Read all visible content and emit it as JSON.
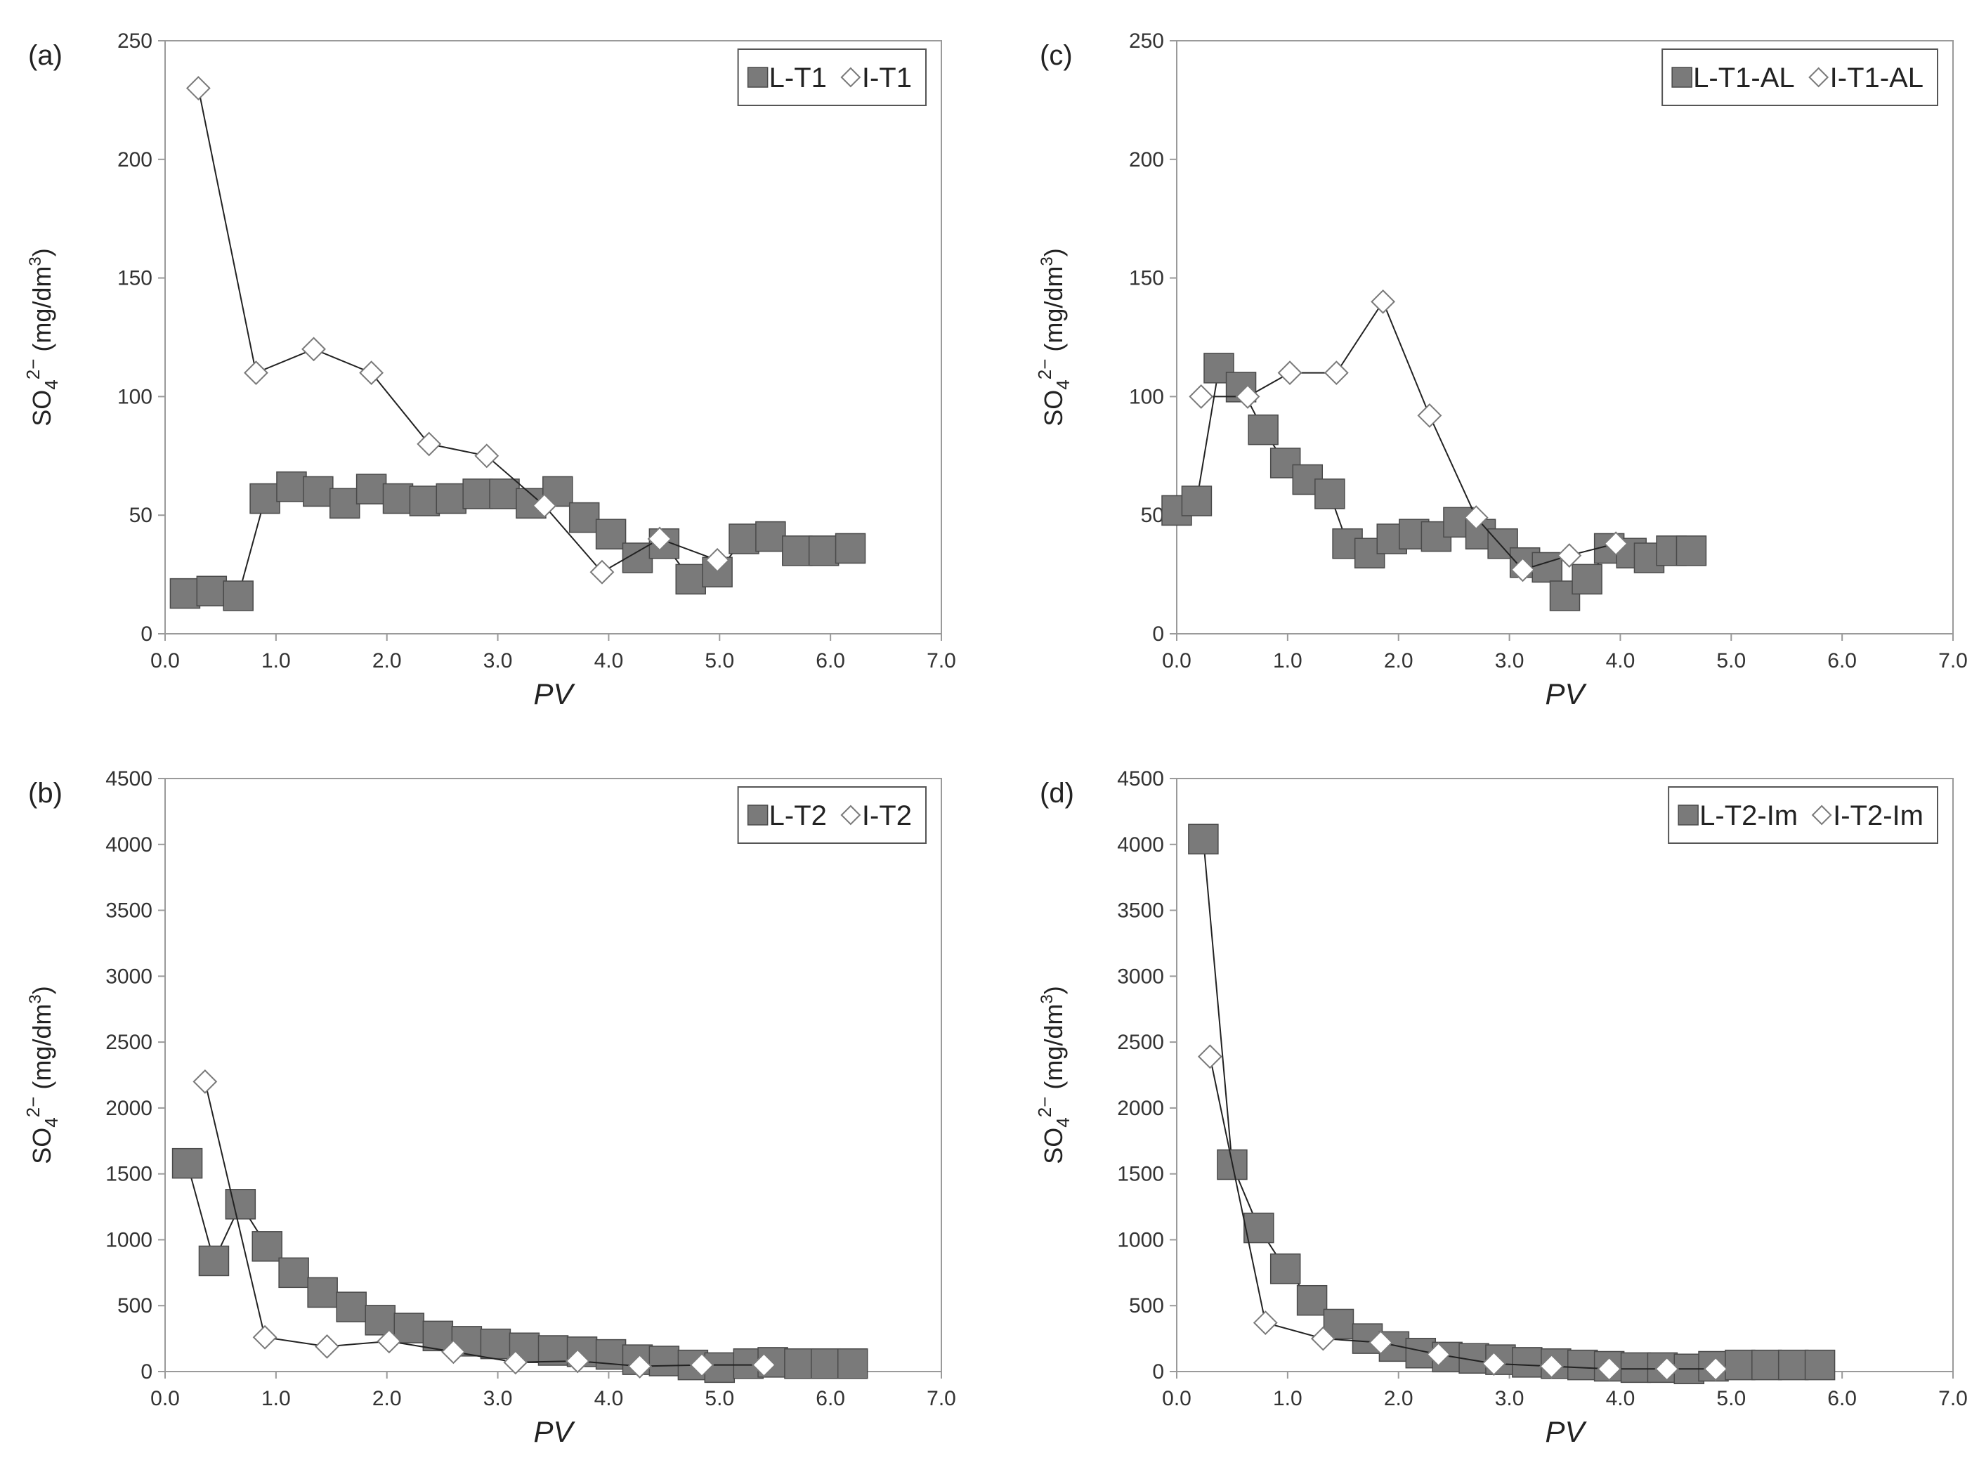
{
  "colors": {
    "square_fill": "#7a7a7a",
    "square_stroke": "#4a4a4a",
    "diamond_fill": "#ffffff",
    "diamond_stroke": "#7a7a7a",
    "line": "#222222",
    "frame": "#9a9a9a"
  },
  "chart_data": [
    {
      "panel_label": "(a)",
      "type": "line",
      "xlabel": "PV",
      "ylabel": "SO42− (mg/dm3)",
      "ylabel_main": "SO",
      "ylabel_sub": "4",
      "ylabel_sup": "2−",
      "ylabel_unit": " (mg/dm",
      "ylabel_unit_sup": "3",
      "ylabel_close": ")",
      "xlim": [
        0,
        7
      ],
      "ylim": [
        0,
        250
      ],
      "xticks": [
        "0.0",
        "1.0",
        "2.0",
        "3.0",
        "4.0",
        "5.0",
        "6.0",
        "7.0"
      ],
      "yticks": [
        "0",
        "50",
        "100",
        "150",
        "200",
        "250"
      ],
      "legend_position": "top-right",
      "series": [
        {
          "name": "L-T1",
          "marker": "square",
          "x": [
            0.18,
            0.42,
            0.66,
            0.9,
            1.14,
            1.38,
            1.62,
            1.86,
            2.1,
            2.34,
            2.58,
            2.82,
            3.06,
            3.3,
            3.54,
            3.78,
            4.02,
            4.26,
            4.5,
            4.74,
            4.98,
            5.22,
            5.46,
            5.7,
            5.94,
            6.18
          ],
          "y": [
            17,
            18,
            16,
            57,
            62,
            60,
            55,
            61,
            57,
            56,
            57,
            59,
            59,
            55,
            60,
            49,
            42,
            32,
            38,
            23,
            26,
            40,
            41,
            35,
            35,
            36
          ]
        },
        {
          "name": "I-T1",
          "marker": "diamond",
          "x": [
            0.3,
            0.82,
            1.34,
            1.86,
            2.38,
            2.9,
            3.42,
            3.94,
            4.46,
            4.98
          ],
          "y": [
            230,
            110,
            120,
            110,
            80,
            75,
            54,
            26,
            40,
            31
          ]
        }
      ]
    },
    {
      "panel_label": "(c)",
      "type": "line",
      "xlabel": "PV",
      "ylabel": "SO42− (mg/dm3)",
      "ylabel_main": "SO",
      "ylabel_sub": "4",
      "ylabel_sup": "2−",
      "ylabel_unit": " (mg/dm",
      "ylabel_unit_sup": "3",
      "ylabel_close": ")",
      "xlim": [
        0,
        7
      ],
      "ylim": [
        0,
        250
      ],
      "xticks": [
        "0.0",
        "1.0",
        "2.0",
        "3.0",
        "4.0",
        "5.0",
        "6.0",
        "7.0"
      ],
      "yticks": [
        "0",
        "50",
        "100",
        "150",
        "200",
        "250"
      ],
      "legend_position": "top-right",
      "series": [
        {
          "name": "L-T1-AL",
          "marker": "square",
          "x": [
            0.0,
            0.18,
            0.38,
            0.58,
            0.78,
            0.98,
            1.18,
            1.38,
            1.54,
            1.74,
            1.94,
            2.14,
            2.34,
            2.54,
            2.74,
            2.94,
            3.14,
            3.34,
            3.5,
            3.7,
            3.9,
            4.1,
            4.26,
            4.46,
            4.64
          ],
          "y": [
            52,
            56,
            112,
            104,
            86,
            72,
            65,
            59,
            38,
            34,
            40,
            42,
            41,
            47,
            42,
            38,
            30,
            28,
            16,
            23,
            36,
            34,
            32,
            35,
            35
          ]
        },
        {
          "name": "I-T1-AL",
          "marker": "diamond",
          "x": [
            0.22,
            0.64,
            1.02,
            1.44,
            1.86,
            2.28,
            2.7,
            3.12,
            3.54,
            3.96
          ],
          "y": [
            100,
            100,
            110,
            110,
            140,
            92,
            49,
            27,
            33,
            38
          ]
        }
      ]
    },
    {
      "panel_label": "(b)",
      "type": "line",
      "xlabel": "PV",
      "ylabel": "SO42− (mg/dm3)",
      "ylabel_main": "SO",
      "ylabel_sub": "4",
      "ylabel_sup": "2−",
      "ylabel_unit": " (mg/dm",
      "ylabel_unit_sup": "3",
      "ylabel_close": ")",
      "xlim": [
        0,
        7
      ],
      "ylim": [
        0,
        4500
      ],
      "xticks": [
        "0.0",
        "1.0",
        "2.0",
        "3.0",
        "4.0",
        "5.0",
        "6.0",
        "7.0"
      ],
      "yticks": [
        "0",
        "500",
        "1000",
        "1500",
        "2000",
        "2500",
        "3000",
        "3500",
        "4000",
        "4500"
      ],
      "legend_position": "top-right",
      "series": [
        {
          "name": "L-T2",
          "marker": "square",
          "x": [
            0.2,
            0.44,
            0.68,
            0.92,
            1.16,
            1.42,
            1.68,
            1.94,
            2.2,
            2.46,
            2.72,
            2.98,
            3.24,
            3.5,
            3.76,
            4.02,
            4.26,
            4.5,
            4.76,
            5.0,
            5.26,
            5.48,
            5.72,
            5.96,
            6.2
          ],
          "y": [
            1580,
            840,
            1270,
            950,
            750,
            600,
            490,
            390,
            330,
            270,
            230,
            210,
            180,
            160,
            150,
            130,
            90,
            80,
            50,
            30,
            60,
            70,
            60,
            60,
            60
          ]
        },
        {
          "name": "I-T2",
          "marker": "diamond",
          "x": [
            0.36,
            0.9,
            1.46,
            2.02,
            2.6,
            3.16,
            3.72,
            4.28,
            4.84,
            5.4
          ],
          "y": [
            2200,
            260,
            190,
            230,
            150,
            70,
            80,
            40,
            50,
            50
          ]
        }
      ]
    },
    {
      "panel_label": "(d)",
      "type": "line",
      "xlabel": "PV",
      "ylabel": "SO42− (mg/dm3)",
      "ylabel_main": "SO",
      "ylabel_sub": "4",
      "ylabel_sup": "2−",
      "ylabel_unit": " (mg/dm",
      "ylabel_unit_sup": "3",
      "ylabel_close": ")",
      "xlim": [
        0,
        7
      ],
      "ylim": [
        0,
        4500
      ],
      "xticks": [
        "0.0",
        "1.0",
        "2.0",
        "3.0",
        "4.0",
        "5.0",
        "6.0",
        "7.0"
      ],
      "yticks": [
        "0",
        "500",
        "1000",
        "1500",
        "2000",
        "2500",
        "3000",
        "3500",
        "4000",
        "4500"
      ],
      "legend_position": "top-right",
      "series": [
        {
          "name": "L-T2-Im",
          "marker": "square",
          "x": [
            0.24,
            0.5,
            0.74,
            0.98,
            1.22,
            1.46,
            1.72,
            1.96,
            2.2,
            2.44,
            2.68,
            2.92,
            3.16,
            3.42,
            3.66,
            3.9,
            4.14,
            4.38,
            4.62,
            4.84,
            5.08,
            5.32,
            5.56,
            5.8
          ],
          "y": [
            4040,
            1570,
            1090,
            780,
            540,
            360,
            250,
            190,
            140,
            110,
            100,
            90,
            70,
            60,
            50,
            40,
            30,
            30,
            20,
            40,
            50,
            50,
            50,
            50
          ]
        },
        {
          "name": "I-T2-Im",
          "marker": "diamond",
          "x": [
            0.3,
            0.8,
            1.32,
            1.84,
            2.36,
            2.86,
            3.38,
            3.9,
            4.42,
            4.86
          ],
          "y": [
            2390,
            370,
            250,
            220,
            130,
            60,
            40,
            20,
            20,
            20
          ]
        }
      ]
    }
  ]
}
